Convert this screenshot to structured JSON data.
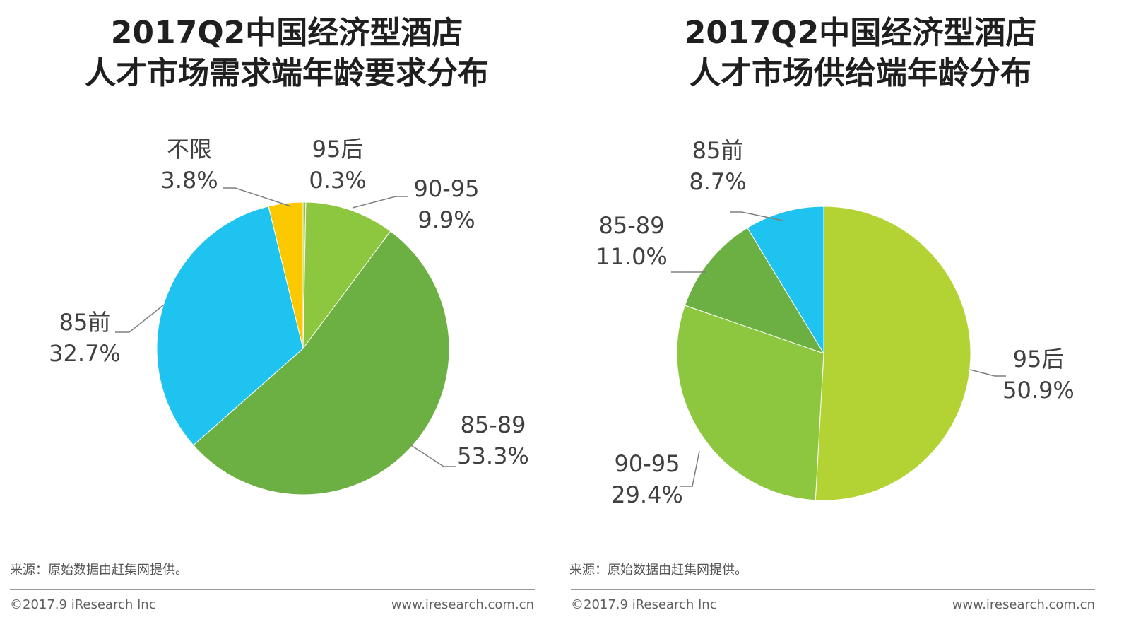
{
  "colors": {
    "yellow": "#fcc800",
    "light_green": "#8dc63f",
    "mid_green": "#6cb043",
    "cyan": "#1ec3f0",
    "lime": "#b3d234"
  },
  "chart_data": [
    {
      "type": "pie",
      "title": [
        "2017Q2中国经济型酒店",
        "人才市场需求端年龄要求分布"
      ],
      "slices": [
        {
          "name": "95后",
          "value": 0.3,
          "label": "0.3%",
          "color": "#8dc63f"
        },
        {
          "name": "90-95",
          "value": 9.9,
          "label": "9.9%",
          "color": "#8dc63f"
        },
        {
          "name": "85-89",
          "value": 53.3,
          "label": "53.3%",
          "color": "#6cb043"
        },
        {
          "name": "85前",
          "value": 32.7,
          "label": "32.7%",
          "color": "#1ec3f0"
        },
        {
          "name": "不限",
          "value": 3.8,
          "label": "3.8%",
          "color": "#fcc800"
        }
      ]
    },
    {
      "type": "pie",
      "title": [
        "2017Q2中国经济型酒店",
        "人才市场供给端年龄分布"
      ],
      "slices": [
        {
          "name": "95后",
          "value": 50.9,
          "label": "50.9%",
          "color": "#b3d234"
        },
        {
          "name": "90-95",
          "value": 29.4,
          "label": "29.4%",
          "color": "#8dc63f"
        },
        {
          "name": "85-89",
          "value": 11.0,
          "label": "11.0%",
          "color": "#6cb043"
        },
        {
          "name": "85前",
          "value": 8.7,
          "label": "8.7%",
          "color": "#1ec3f0"
        }
      ]
    }
  ],
  "footer": {
    "source": "来源：原始数据由赶集网提供。",
    "copyright": "©2017.9 iResearch Inc",
    "website": "www.iresearch.com.cn"
  }
}
